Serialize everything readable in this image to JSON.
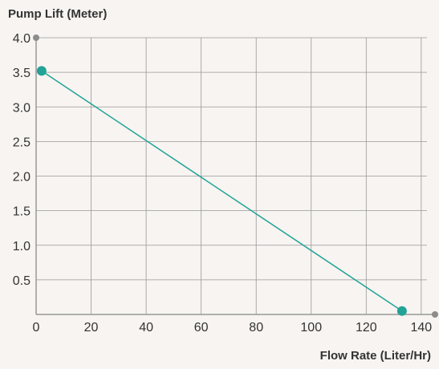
{
  "chart_data": {
    "type": "line",
    "ylabel": "Pump Lift (Meter)",
    "xlabel": "Flow Rate (Liter/Hr)",
    "xlim": [
      0,
      145
    ],
    "ylim": [
      0,
      4.0
    ],
    "x_ticks": [
      0,
      20,
      40,
      60,
      80,
      100,
      120,
      140
    ],
    "y_ticks": [
      0.5,
      1.0,
      1.5,
      2.0,
      2.5,
      3.0,
      3.5,
      4.0
    ],
    "x_tick_labels": [
      "0",
      "20",
      "40",
      "60",
      "80",
      "100",
      "120",
      "140"
    ],
    "y_tick_labels": [
      "0.5",
      "1.0",
      "1.5",
      "2.0",
      "2.5",
      "3.0",
      "3.5",
      "4.0"
    ],
    "grid": true,
    "series": [
      {
        "points": [
          {
            "x": 2,
            "y": 3.52
          },
          {
            "x": 133,
            "y": 0.05
          }
        ]
      }
    ]
  },
  "colors": {
    "background": "#f7f4f1",
    "grid": "#999999",
    "axis": "#999999",
    "series": "#22a396",
    "axis_endpoint": "#8c8c8c",
    "text": "#333333"
  }
}
